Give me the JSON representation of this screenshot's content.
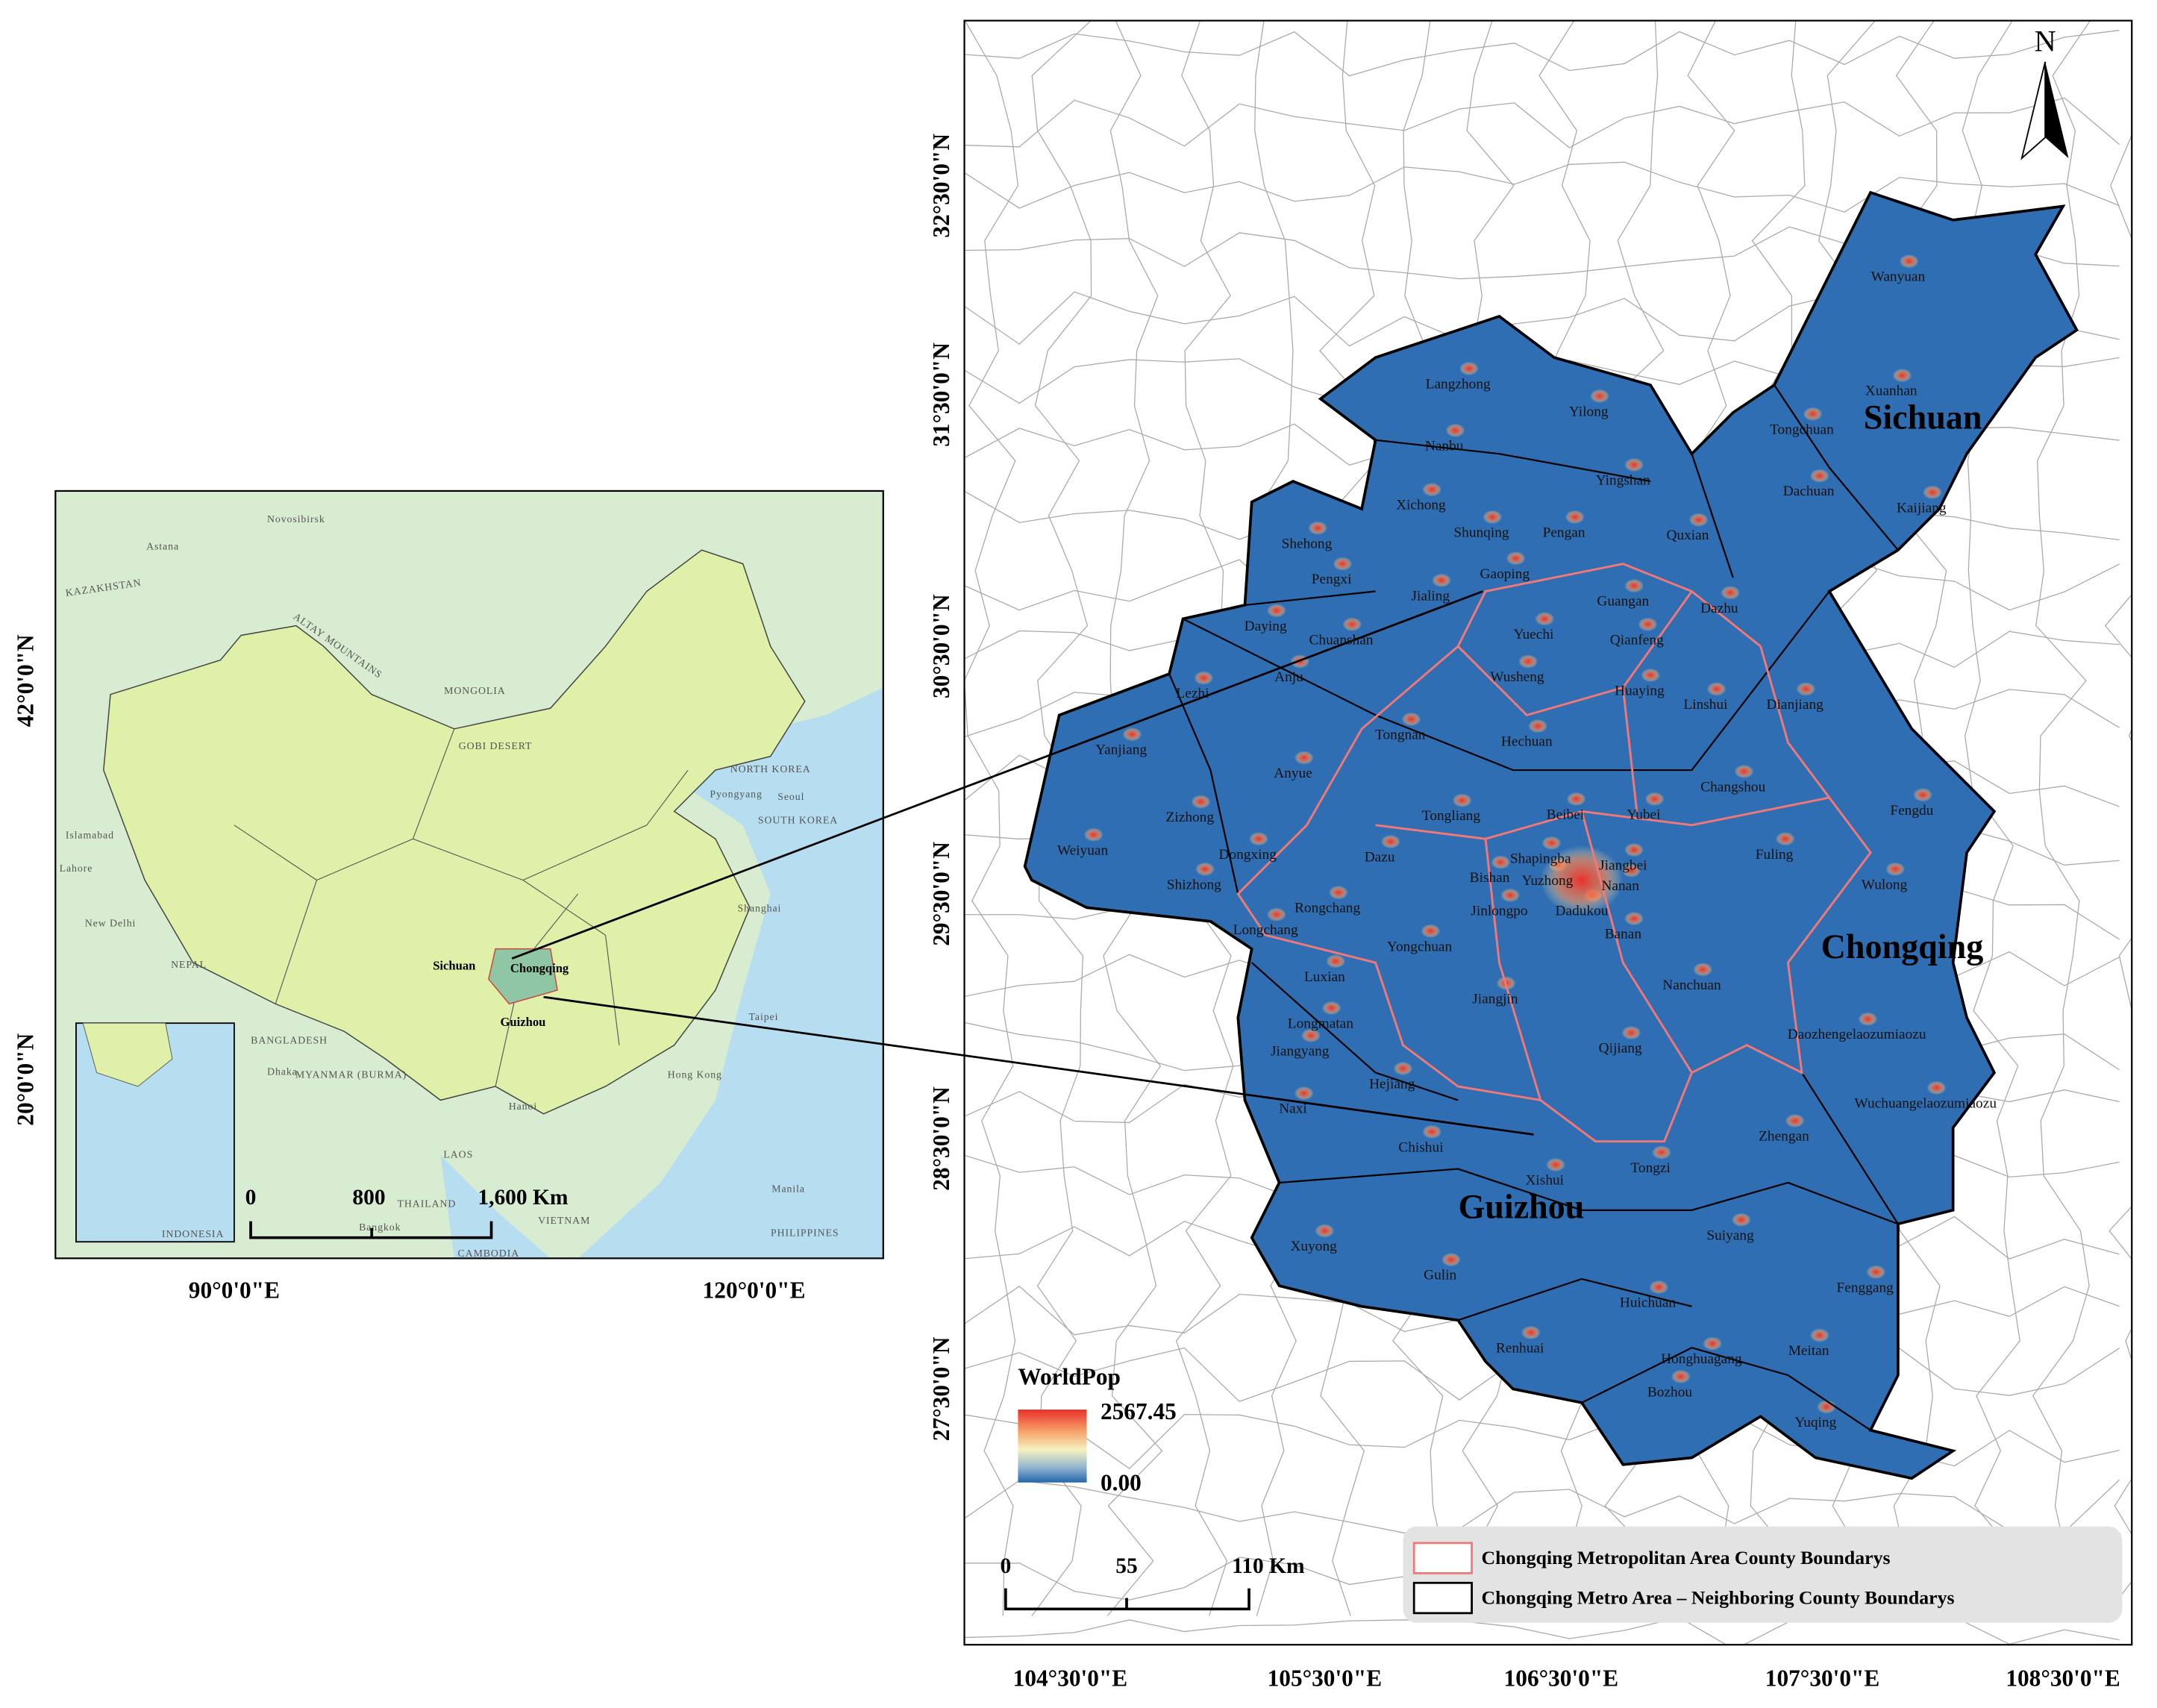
{
  "inset": {
    "place_labels": [
      "KAZAKHSTAN",
      "Astana",
      "Novosibirsk",
      "ALTAY MOUNTAINS",
      "MONGOLIA",
      "GOBI DESERT",
      "NORTH KOREA",
      "Pyongyang",
      "Seoul",
      "SOUTH KOREA",
      "Islamabad",
      "Lahore",
      "New Delhi",
      "NEPAL",
      "BANGLADESH",
      "Dhaka",
      "MYANMAR (BURMA)",
      "Shanghai",
      "Taipei",
      "Hong Kong",
      "Hanoi",
      "LAOS",
      "VIETNAM",
      "THAILAND",
      "Bangkok",
      "CAMBODIA",
      "Manila",
      "PHILIPPINES",
      "INDONESIA"
    ],
    "province_labels": [
      "Sichuan",
      "Chongqing",
      "Guizhou"
    ],
    "lat_labels": [
      "42°0'0\"N",
      "20°0'0\"N"
    ],
    "lon_labels": [
      "90°0'0\"E",
      "120°0'0\"E"
    ],
    "scale_bar": [
      "0",
      "800",
      "1,600 Km"
    ]
  },
  "main": {
    "north": "N",
    "lat_labels": [
      "32°30'0\"N",
      "31°30'0\"N",
      "30°30'0\"N",
      "29°30'0\"N",
      "28°30'0\"N",
      "27°30'0\"N"
    ],
    "lon_labels": [
      "104°30'0\"E",
      "105°30'0\"E",
      "106°30'0\"E",
      "107°30'0\"E",
      "108°30'0\"E"
    ],
    "regions": [
      "Sichuan",
      "Chongqing",
      "Guizhou"
    ],
    "counties": [
      "Wanyuan",
      "Xuanhan",
      "Tongchuan",
      "Dachuan",
      "Kaijiang",
      "Langzhong",
      "Yilong",
      "Nanbu",
      "Yingshan",
      "Xichong",
      "Shunqing",
      "Pengan",
      "Quxian",
      "Shehong",
      "Gaoping",
      "Pengxi",
      "Jialing",
      "Guangan",
      "Dazhu",
      "Daying",
      "Chuanshan",
      "Yuechi",
      "Qianfeng",
      "Anju",
      "Wusheng",
      "Huaying",
      "Lezhi",
      "Linshui",
      "Dianjiang",
      "Tongnan",
      "Hechuan",
      "Yanjiang",
      "Anyue",
      "Changshou",
      "Fengdu",
      "Beibei",
      "Yubei",
      "Tongliang",
      "Zizhong",
      "Weiyuan",
      "Dongxing",
      "Dazu",
      "Shapingba",
      "Jiangbei",
      "Fuling",
      "Bishan",
      "Yuzhong",
      "Nanan",
      "Shizhong",
      "Rongchang",
      "Jinlongpo",
      "Dadukou",
      "Wulong",
      "Longchang",
      "Banan",
      "Yongchuan",
      "Luxian",
      "Nanchuan",
      "Jiangjin",
      "Longmatan",
      "Jiangyang",
      "Daozhengelaozumiaozu",
      "Qijiang",
      "Hejiang",
      "Naxi",
      "Wuchuangelaozumiaozu",
      "Chishui",
      "Zhengan",
      "Xishui",
      "Tongzi",
      "Suiyang",
      "Xuyong",
      "Gulin",
      "Fenggang",
      "Huichuan",
      "Renhuai",
      "Honghuagang",
      "Meitan",
      "Bozhou",
      "Yuqing"
    ],
    "legend": {
      "title": "WorldPop",
      "max": "2567.45",
      "min": "0.00"
    },
    "scale_bar": [
      "0",
      "55",
      "110 Km"
    ],
    "boundary_legend": [
      "Chongqing Metropolitan Area County Boundarys",
      "Chongqing Metro Area – Neighboring County Boundarys"
    ]
  }
}
